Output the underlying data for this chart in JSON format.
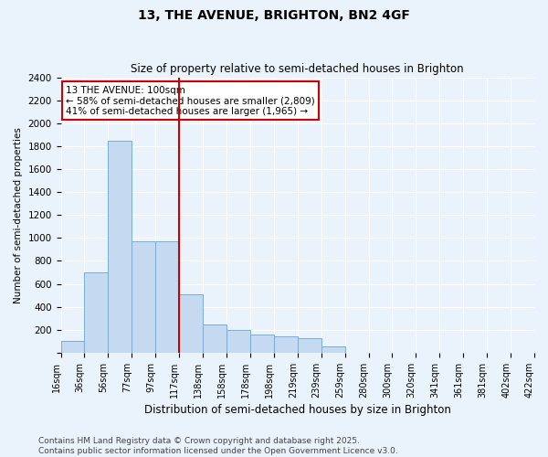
{
  "title": "13, THE AVENUE, BRIGHTON, BN2 4GF",
  "subtitle": "Size of property relative to semi-detached houses in Brighton",
  "xlabel": "Distribution of semi-detached houses by size in Brighton",
  "ylabel": "Number of semi-detached properties",
  "bin_labels": [
    "16sqm",
    "36sqm",
    "56sqm",
    "77sqm",
    "97sqm",
    "117sqm",
    "138sqm",
    "158sqm",
    "178sqm",
    "198sqm",
    "219sqm",
    "239sqm",
    "259sqm",
    "280sqm",
    "300sqm",
    "320sqm",
    "341sqm",
    "361sqm",
    "381sqm",
    "402sqm",
    "422sqm"
  ],
  "bar_heights": [
    100,
    700,
    1850,
    975,
    975,
    510,
    250,
    200,
    155,
    140,
    130,
    55,
    0,
    0,
    0,
    0,
    0,
    0,
    0,
    0
  ],
  "bar_color": "#c5d9f0",
  "bar_edgecolor": "#7aadd4",
  "red_line_after_bin": 4,
  "annotation_text": "13 THE AVENUE: 100sqm\n← 58% of semi-detached houses are smaller (2,809)\n41% of semi-detached houses are larger (1,965) →",
  "ylim": [
    0,
    2400
  ],
  "yticks": [
    0,
    200,
    400,
    600,
    800,
    1000,
    1200,
    1400,
    1600,
    1800,
    2000,
    2200,
    2400
  ],
  "footer_text": "Contains HM Land Registry data © Crown copyright and database right 2025.\nContains public sector information licensed under the Open Government Licence v3.0.",
  "background_color": "#eaf2fb",
  "plot_background": "#eaf2fb",
  "grid_color": "#ffffff",
  "annotation_box_facecolor": "#ffffff",
  "annotation_box_edgecolor": "#cc0000",
  "red_line_color": "#cc0000",
  "title_fontsize": 10,
  "subtitle_fontsize": 8.5,
  "xlabel_fontsize": 8.5,
  "ylabel_fontsize": 7.5,
  "tick_fontsize": 7,
  "annotation_fontsize": 7.5,
  "footer_fontsize": 6.5
}
